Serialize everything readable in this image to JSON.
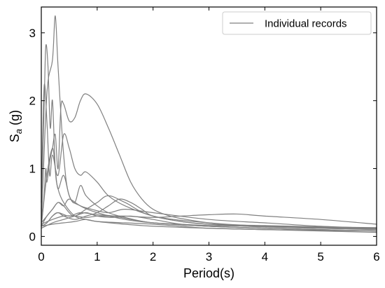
{
  "chart_data": {
    "type": "line",
    "xlabel": "Period(s)",
    "ylabel_main": "S",
    "ylabel_sub": "a",
    "ylabel_unit": " (g)",
    "xlim": [
      0,
      6
    ],
    "ylim": [
      -0.13,
      3.38
    ],
    "xticks": [
      0,
      1,
      2,
      3,
      4,
      5,
      6
    ],
    "yticks": [
      0,
      1,
      2,
      3
    ],
    "grid": false,
    "legend": {
      "position": "top-right",
      "label": "Individual records"
    },
    "line_color": "#808080",
    "series": [
      {
        "x": [
          0,
          0.1,
          0.2,
          0.25,
          0.3,
          0.4,
          0.5,
          0.7,
          1.0,
          1.5,
          2.0,
          3.0,
          4.0,
          5.0,
          6.0
        ],
        "y": [
          0.15,
          2.1,
          2.6,
          3.25,
          2.5,
          1.2,
          0.6,
          0.45,
          0.35,
          0.25,
          0.2,
          0.15,
          0.12,
          0.1,
          0.08
        ]
      },
      {
        "x": [
          0,
          0.05,
          0.08,
          0.12,
          0.16,
          0.2,
          0.25,
          0.3,
          0.4,
          0.6,
          0.8,
          1.0,
          1.5,
          2.0,
          3.0,
          4.0,
          5.0,
          6.0
        ],
        "y": [
          0.4,
          1.9,
          2.8,
          2.5,
          1.6,
          2.0,
          1.0,
          0.7,
          0.5,
          0.3,
          0.25,
          0.22,
          0.18,
          0.15,
          0.12,
          0.1,
          0.09,
          0.08
        ]
      },
      {
        "x": [
          0,
          0.05,
          0.08,
          0.1,
          0.15,
          0.2,
          0.25,
          0.3,
          0.35,
          0.4,
          0.5,
          0.6,
          0.7,
          0.8,
          1.0,
          1.2,
          1.4,
          1.6,
          1.8,
          2.0,
          2.3,
          2.6,
          3.0,
          3.5,
          4.0,
          5.0,
          6.0
        ],
        "y": [
          0.15,
          0.6,
          1.0,
          0.8,
          1.1,
          1.3,
          1.5,
          1.0,
          1.9,
          1.95,
          1.7,
          1.75,
          2.0,
          2.1,
          1.95,
          1.6,
          1.2,
          0.8,
          0.55,
          0.4,
          0.3,
          0.25,
          0.2,
          0.16,
          0.14,
          0.12,
          0.11
        ]
      },
      {
        "x": [
          0,
          0.05,
          0.1,
          0.15,
          0.2,
          0.3,
          0.4,
          0.5,
          0.6,
          0.7,
          0.8,
          1.0,
          1.2,
          1.5,
          2.0,
          2.5,
          3.0,
          4.0,
          5.0,
          6.0
        ],
        "y": [
          0.5,
          2.2,
          1.7,
          0.9,
          1.2,
          0.9,
          1.5,
          1.3,
          1.0,
          0.9,
          0.95,
          0.8,
          0.6,
          0.45,
          0.3,
          0.22,
          0.18,
          0.14,
          0.12,
          0.1
        ]
      },
      {
        "x": [
          0,
          0.1,
          0.2,
          0.25,
          0.3,
          0.4,
          0.5,
          0.6,
          0.7,
          0.8,
          1.0,
          1.2,
          1.5,
          2.0,
          3.0,
          4.0,
          5.0,
          6.0
        ],
        "y": [
          0.15,
          0.9,
          1.3,
          1.0,
          0.7,
          0.9,
          0.6,
          0.5,
          0.75,
          0.6,
          0.45,
          0.35,
          0.28,
          0.2,
          0.15,
          0.12,
          0.1,
          0.08
        ]
      },
      {
        "x": [
          0,
          0.1,
          0.2,
          0.3,
          0.4,
          0.5,
          0.6,
          0.8,
          1.0,
          1.2,
          1.5,
          2.0,
          3.0,
          4.0,
          5.0,
          6.0
        ],
        "y": [
          0.15,
          0.3,
          0.4,
          0.5,
          0.45,
          0.35,
          0.3,
          0.4,
          0.5,
          0.6,
          0.5,
          0.3,
          0.2,
          0.15,
          0.13,
          0.12
        ]
      },
      {
        "x": [
          0,
          0.2,
          0.4,
          0.6,
          0.8,
          1.0,
          1.2,
          1.5,
          2.0,
          2.5,
          3.0,
          3.5,
          4.0,
          5.0,
          6.0
        ],
        "y": [
          0.18,
          0.25,
          0.3,
          0.3,
          0.28,
          0.3,
          0.3,
          0.3,
          0.28,
          0.3,
          0.32,
          0.33,
          0.3,
          0.25,
          0.18
        ]
      },
      {
        "x": [
          0,
          0.1,
          0.2,
          0.3,
          0.4,
          0.6,
          0.8,
          1.0,
          1.2,
          1.4,
          1.6,
          1.8,
          2.0,
          2.5,
          3.0,
          4.0,
          5.0,
          6.0
        ],
        "y": [
          0.15,
          0.2,
          0.3,
          0.35,
          0.3,
          0.25,
          0.3,
          0.35,
          0.45,
          0.55,
          0.5,
          0.4,
          0.3,
          0.22,
          0.18,
          0.16,
          0.14,
          0.12
        ]
      },
      {
        "x": [
          0,
          0.2,
          0.4,
          0.6,
          0.8,
          1.0,
          1.3,
          1.6,
          2.0,
          2.5,
          3.0,
          4.0,
          5.0,
          6.0
        ],
        "y": [
          0.12,
          0.2,
          0.25,
          0.3,
          0.35,
          0.3,
          0.28,
          0.3,
          0.25,
          0.18,
          0.15,
          0.12,
          0.1,
          0.08
        ]
      },
      {
        "x": [
          0,
          0.2,
          0.4,
          0.6,
          0.8,
          1.0,
          1.5,
          2.0,
          2.5,
          3.0,
          4.0,
          5.0,
          6.0
        ],
        "y": [
          0.15,
          0.18,
          0.2,
          0.22,
          0.25,
          0.22,
          0.2,
          0.18,
          0.15,
          0.12,
          0.1,
          0.08,
          0.06
        ]
      },
      {
        "x": [
          0,
          0.1,
          0.2,
          0.3,
          0.4,
          0.5,
          0.7,
          0.9,
          1.2,
          1.5,
          2.0,
          3.0,
          4.0,
          5.0,
          6.0
        ],
        "y": [
          0.2,
          0.3,
          0.4,
          0.5,
          0.45,
          0.55,
          0.45,
          0.4,
          0.35,
          0.4,
          0.35,
          0.25,
          0.2,
          0.15,
          0.12
        ]
      },
      {
        "x": [
          0,
          0.1,
          0.2,
          0.3,
          0.5,
          0.7,
          1.0,
          1.3,
          1.6,
          2.0,
          2.5,
          3.0,
          4.0,
          5.0,
          6.0
        ],
        "y": [
          0.15,
          0.2,
          0.3,
          0.35,
          0.3,
          0.35,
          0.32,
          0.3,
          0.25,
          0.2,
          0.18,
          0.16,
          0.15,
          0.14,
          0.13
        ]
      }
    ]
  }
}
